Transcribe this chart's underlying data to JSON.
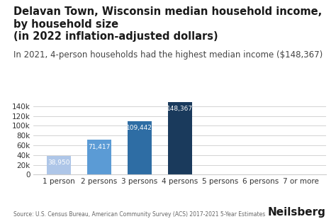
{
  "title": "Delavan Town, Wisconsin median household income, by household size\n(in 2022 inflation-adjusted dollars)",
  "subtitle": "In 2021, 4-person households had the highest median income ($148,367)",
  "categories": [
    "1 person",
    "2 persons",
    "3 persons",
    "4 persons",
    "5 persons",
    "6 persons",
    "7 or more"
  ],
  "values": [
    38950,
    71417,
    109442,
    148367,
    0,
    0,
    0
  ],
  "bar_colors": [
    "#aec6e8",
    "#5b9bd5",
    "#2e6da4",
    "#1a3a5c",
    "#d3d3d3",
    "#d3d3d3",
    "#d3d3d3"
  ],
  "value_labels": [
    "38,950",
    "71,417",
    "109,442",
    "148,367"
  ],
  "ylim": [
    0,
    160000
  ],
  "yticks": [
    0,
    20000,
    40000,
    60000,
    80000,
    100000,
    120000,
    140000
  ],
  "ytick_labels": [
    "0",
    "20k",
    "40k",
    "60k",
    "80k",
    "100k",
    "120k",
    "140k"
  ],
  "source_text": "Source: U.S. Census Bureau, American Community Survey (ACS) 2017-2021 5-Year Estimates",
  "brand_text": "Neilsberg",
  "title_fontsize": 10.5,
  "subtitle_fontsize": 8.5,
  "label_color_light": "#ffffff",
  "label_color_dark": "#555555",
  "bg_color": "#ffffff",
  "grid_color": "#cccccc",
  "axis_line_color": "#cccccc"
}
